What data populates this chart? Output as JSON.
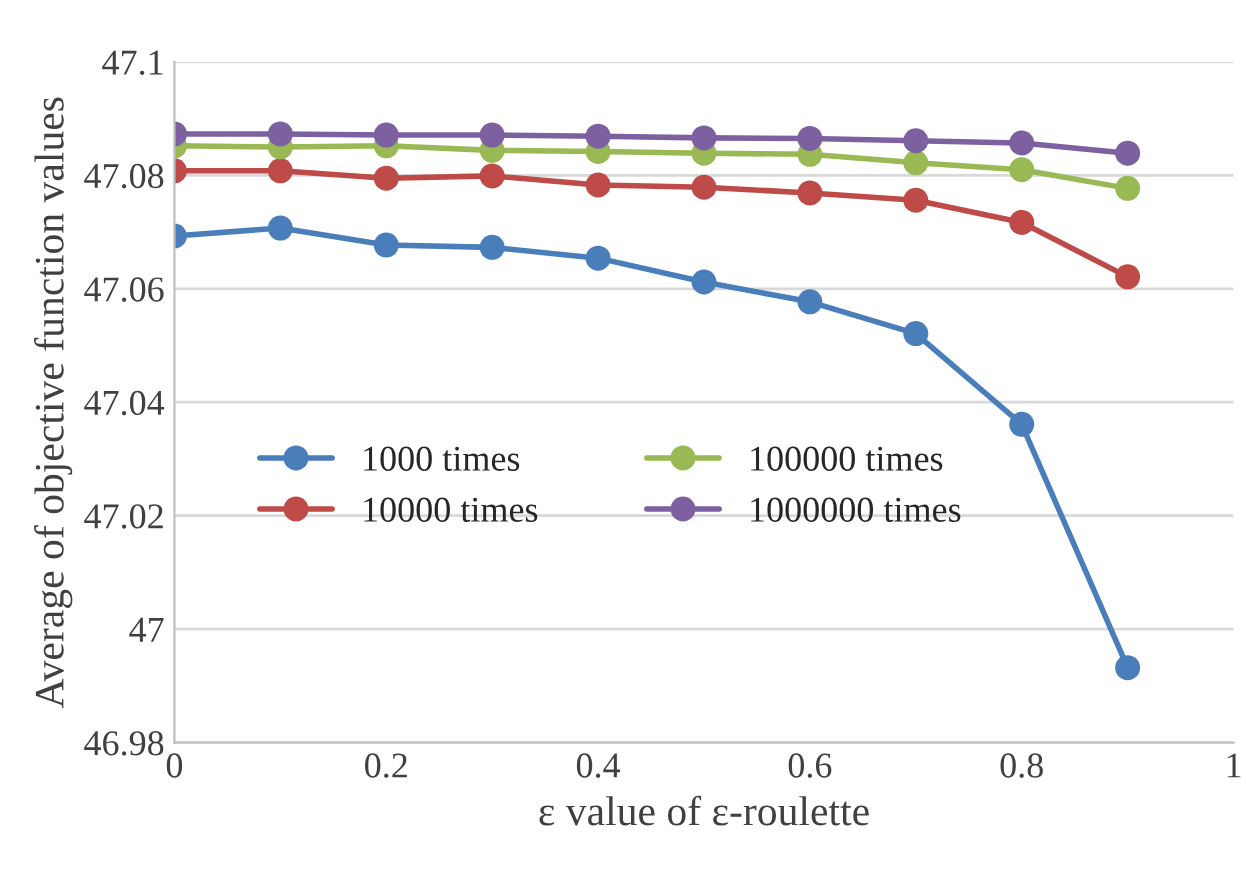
{
  "chart_data": {
    "type": "line",
    "xlabel": "ε value of ε-roulette",
    "ylabel": "Average of objective function values",
    "x": [
      0,
      0.1,
      0.2,
      0.3,
      0.4,
      0.5,
      0.6,
      0.7,
      0.8,
      0.9
    ],
    "series": [
      {
        "name": "1000 times",
        "color": "#4a7ebb",
        "values": [
          47.0693,
          47.0707,
          47.0677,
          47.0673,
          47.0654,
          47.0612,
          47.0577,
          47.0521,
          47.0361,
          46.9932
        ]
      },
      {
        "name": "10000 times",
        "color": "#be4b48",
        "values": [
          47.0808,
          47.0808,
          47.0795,
          47.0799,
          47.0783,
          47.0779,
          47.0769,
          47.0756,
          47.0717,
          47.0621
        ]
      },
      {
        "name": "100000 times",
        "color": "#98b954",
        "values": [
          47.0852,
          47.085,
          47.0852,
          47.0844,
          47.0842,
          47.0839,
          47.0837,
          47.0822,
          47.081,
          47.0777
        ]
      },
      {
        "name": "1000000 times",
        "color": "#7d60a0",
        "values": [
          47.0873,
          47.0873,
          47.0871,
          47.0871,
          47.0869,
          47.0866,
          47.0865,
          47.0861,
          47.0857,
          47.0839
        ]
      }
    ],
    "xlim": [
      0,
      1
    ],
    "xticks": [
      0,
      0.2,
      0.4,
      0.6,
      0.8,
      1
    ],
    "ylim": [
      46.98,
      47.1
    ],
    "yticks": [
      46.98,
      47,
      47.02,
      47.04,
      47.06,
      47.08,
      47.1
    ],
    "grid": "y",
    "legend": "left",
    "marker": "circle",
    "line_style": "solid"
  }
}
